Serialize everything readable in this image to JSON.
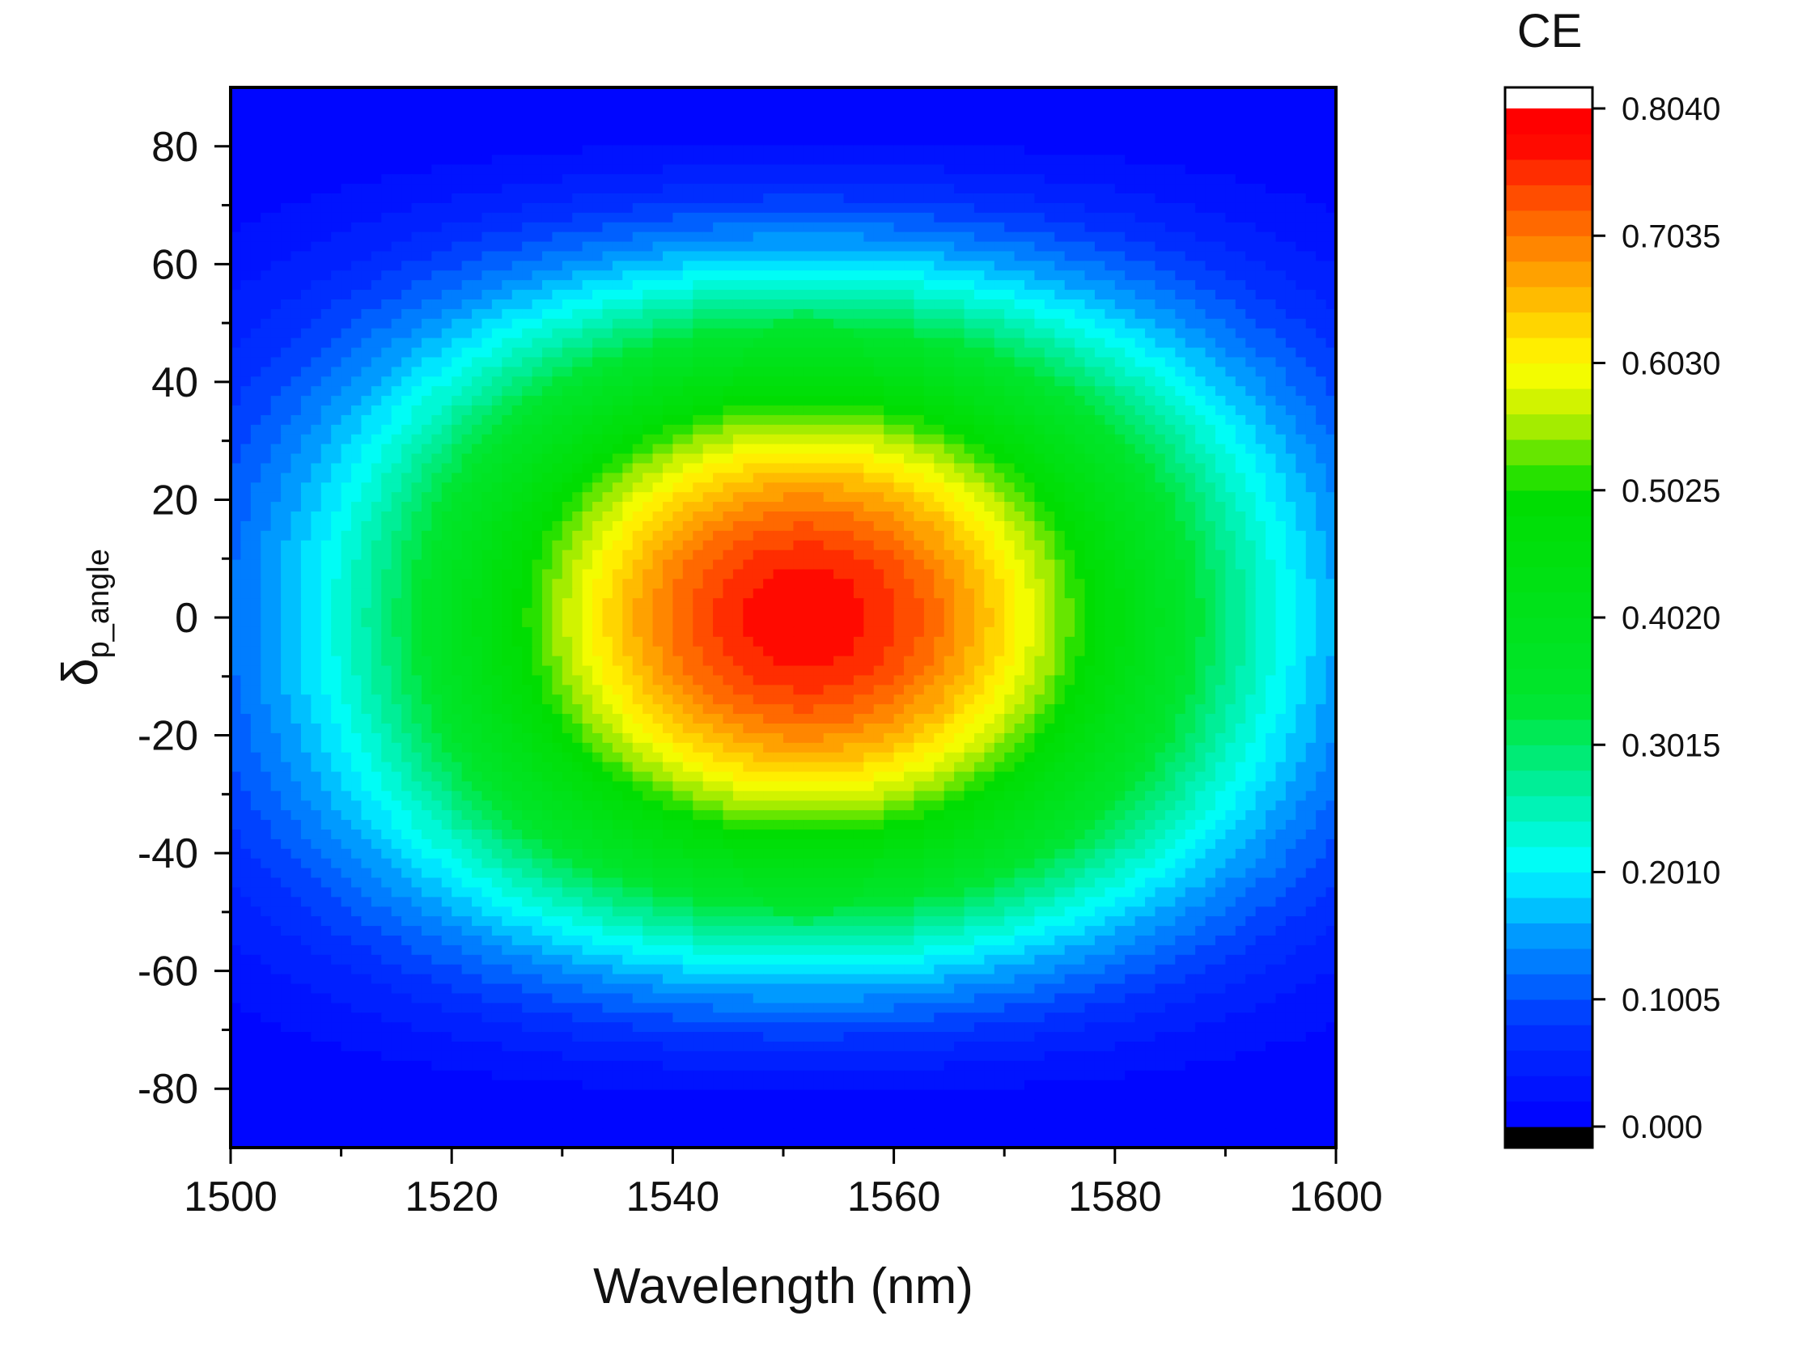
{
  "chart_data": {
    "type": "heatmap",
    "subtype": "filled-contour",
    "title": "",
    "xlabel": "Wavelength (nm)",
    "ylabel_main": "δ",
    "ylabel_subscript": "p_angle",
    "xlim": [
      1500,
      1600
    ],
    "ylim": [
      -90,
      90
    ],
    "x_ticks": [
      1500,
      1520,
      1540,
      1560,
      1580,
      1600
    ],
    "x_minor_step": 10,
    "y_ticks": [
      -80,
      -60,
      -40,
      -20,
      0,
      20,
      40,
      60,
      80
    ],
    "y_minor_step": 10,
    "colorbar": {
      "title": "CE",
      "range": [
        0,
        0.804
      ],
      "tick_values": [
        0.0,
        0.1005,
        0.201,
        0.3015,
        0.402,
        0.5025,
        0.603,
        0.7035,
        0.804
      ],
      "tick_labels": [
        "0.000",
        "0.1005",
        "0.2010",
        "0.3015",
        "0.4020",
        "0.5025",
        "0.6030",
        "0.7035",
        "0.8040"
      ],
      "levels": 40,
      "over_color": "#ffffff",
      "under_color": "#000000",
      "color_stops": [
        {
          "value": 0.0,
          "color": "#0000ff"
        },
        {
          "value": 0.08,
          "color": "#0033ff"
        },
        {
          "value": 0.15,
          "color": "#0099ff"
        },
        {
          "value": 0.205,
          "color": "#00ffff"
        },
        {
          "value": 0.27,
          "color": "#00ee99"
        },
        {
          "value": 0.335,
          "color": "#00e62e"
        },
        {
          "value": 0.5,
          "color": "#00dd00"
        },
        {
          "value": 0.56,
          "color": "#bbee00"
        },
        {
          "value": 0.6,
          "color": "#ffff00"
        },
        {
          "value": 0.68,
          "color": "#ff9900"
        },
        {
          "value": 0.74,
          "color": "#ff4400"
        },
        {
          "value": 0.78,
          "color": "#ff0000"
        },
        {
          "value": 0.804,
          "color": "#ff0000"
        }
      ]
    },
    "surface": {
      "peak_ce": 0.78,
      "peak_wavelength_nm": 1552,
      "peak_angle_deg": 0,
      "wavelength_halfwidth_nm": 38,
      "angle_exponent": 2,
      "min_ce": 0.0
    }
  }
}
